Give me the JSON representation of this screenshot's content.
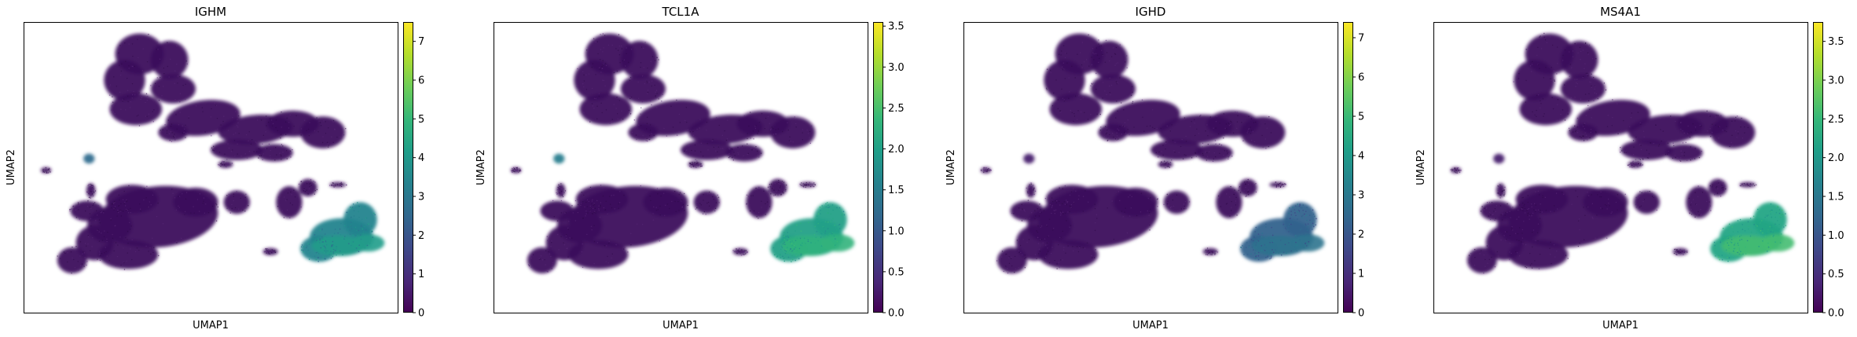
{
  "figure": {
    "colormap": "viridis",
    "colormap_stops": [
      "#440154",
      "#482878",
      "#3e4989",
      "#31688e",
      "#26828e",
      "#1f9e89",
      "#35b779",
      "#6ece58",
      "#b5de2b",
      "#fde725"
    ],
    "point_base_color": "#3b0b5c"
  },
  "chart_data": [
    {
      "type": "scatter",
      "title": "IGHM",
      "xlabel": "UMAP1",
      "ylabel": "UMAP2",
      "colorbar": {
        "range": [
          0,
          7.5
        ],
        "ticks": [
          0,
          1,
          2,
          3,
          4,
          5,
          6,
          7
        ],
        "tick_labels": [
          "0",
          "1",
          "2",
          "3",
          "4",
          "5",
          "6",
          "7"
        ]
      },
      "cluster_expression": {
        "b_cells": 3.4,
        "b_cells_core": 4.1,
        "small_cluster": 2.6,
        "other": 0.1
      }
    },
    {
      "type": "scatter",
      "title": "TCL1A",
      "xlabel": "UMAP1",
      "ylabel": "UMAP2",
      "colorbar": {
        "range": [
          0,
          3.55
        ],
        "ticks": [
          0,
          0.5,
          1,
          1.5,
          2,
          2.5,
          3,
          3.5
        ],
        "tick_labels": [
          "0.0",
          "0.5",
          "1.0",
          "1.5",
          "2.0",
          "2.5",
          "3.0",
          "3.5"
        ]
      },
      "cluster_expression": {
        "b_cells": 2.0,
        "b_cells_core": 2.3,
        "small_cluster": 1.5,
        "other": 0.05
      }
    },
    {
      "type": "scatter",
      "title": "IGHD",
      "xlabel": "UMAP1",
      "ylabel": "UMAP2",
      "colorbar": {
        "range": [
          0,
          7.4
        ],
        "ticks": [
          0,
          1,
          2,
          3,
          4,
          5,
          6,
          7
        ],
        "tick_labels": [
          "0",
          "1",
          "2",
          "3",
          "4",
          "5",
          "6",
          "7"
        ]
      },
      "cluster_expression": {
        "b_cells": 2.3,
        "b_cells_core": 2.8,
        "small_cluster": 0.6,
        "other": 0.05
      }
    },
    {
      "type": "scatter",
      "title": "MS4A1",
      "xlabel": "UMAP1",
      "ylabel": "UMAP2",
      "colorbar": {
        "range": [
          0,
          3.75
        ],
        "ticks": [
          0,
          0.5,
          1,
          1.5,
          2,
          2.5,
          3,
          3.5
        ],
        "tick_labels": [
          "0.0",
          "0.5",
          "1.0",
          "1.5",
          "2.0",
          "2.5",
          "3.0",
          "3.5"
        ]
      },
      "cluster_expression": {
        "b_cells": 2.2,
        "b_cells_core": 2.6,
        "small_cluster": 0.3,
        "other": 0.05
      }
    }
  ]
}
